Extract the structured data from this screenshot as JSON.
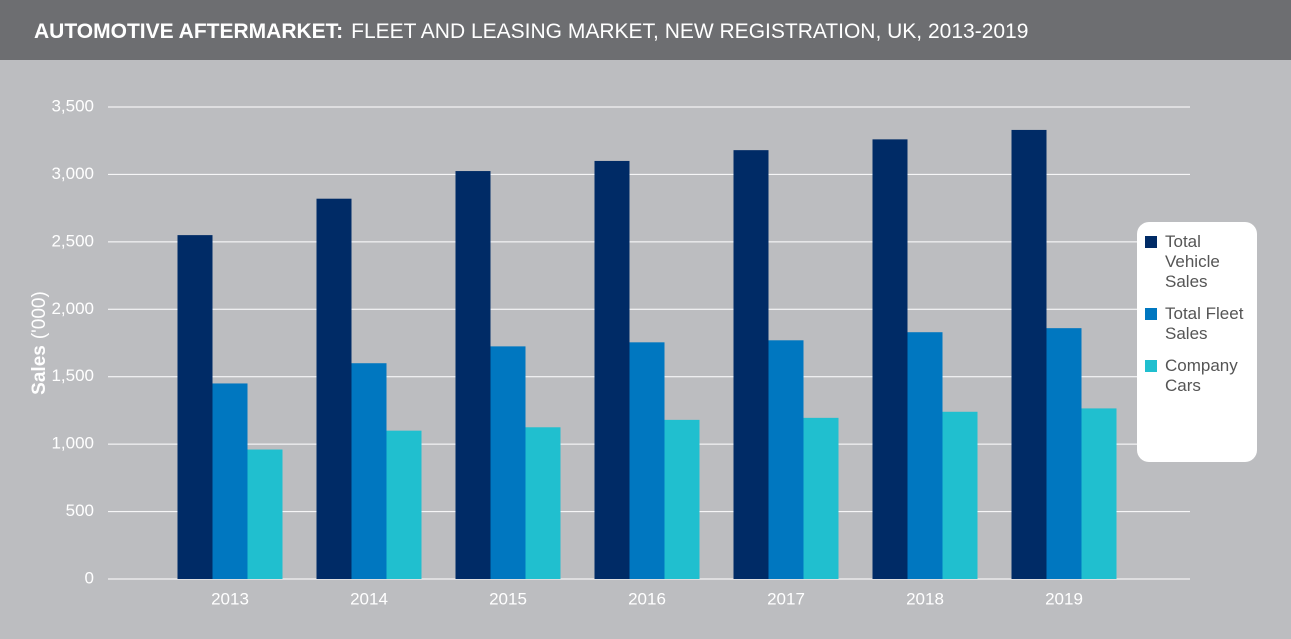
{
  "chart_data": {
    "type": "bar",
    "title": "AUTOMOTIVE AFTERMARKET:",
    "subtitle": "FLEET AND LEASING MARKET, NEW REGISTRATION, UK, 2013-2019",
    "ylabel": [
      "Sales",
      "('000)"
    ],
    "categories": [
      "2013",
      "2014",
      "2015",
      "2016",
      "2017",
      "2018",
      "2019"
    ],
    "series": [
      {
        "name": "Total Vehicle Sales",
        "color": "#002b66",
        "values": [
          2550,
          2820,
          3025,
          3100,
          3180,
          3260,
          3330
        ]
      },
      {
        "name": "Total Fleet Sales",
        "color": "#0077c0",
        "values": [
          1450,
          1600,
          1725,
          1755,
          1770,
          1830,
          1860
        ]
      },
      {
        "name": "Company Cars",
        "color": "#20bfcf",
        "values": [
          960,
          1100,
          1125,
          1180,
          1195,
          1240,
          1265
        ]
      }
    ],
    "ylim": [
      0,
      3500
    ],
    "yticks": [
      0,
      500,
      {
        "value": 1000,
        "label": "1,000"
      },
      {
        "value": 1500,
        "label": "1,500"
      },
      {
        "value": 2000,
        "label": "2,000"
      },
      {
        "value": 2500,
        "label": "2,500"
      },
      {
        "value": 3000,
        "label": "3,000"
      },
      {
        "value": 3500,
        "label": "3,500"
      }
    ],
    "grid": true,
    "legend": "right"
  }
}
